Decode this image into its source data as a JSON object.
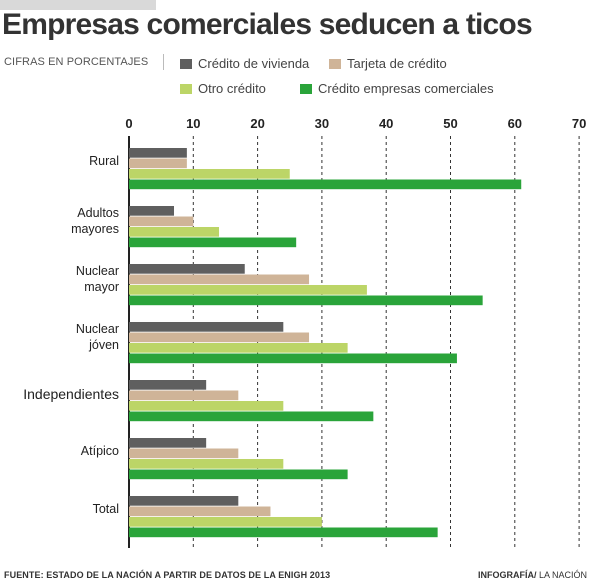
{
  "title": "Empresas comerciales seducen a ticos",
  "subtitle": "CIFRAS EN PORCENTAJES",
  "source": "FUENTE: ESTADO DE LA NACIÓN A PARTIR DE DATOS DE LA ENIGH 2013",
  "credit_strong": "INFOGRAFÍA/",
  "credit_rest": " LA NACIÓN",
  "legend": [
    {
      "label": "Crédito de vivienda",
      "color": "#5f5f5f"
    },
    {
      "label": "Tarjeta de crédito",
      "color": "#cfb498"
    },
    {
      "label": "Otro crédito",
      "color": "#bcd567"
    },
    {
      "label": "Crédito empresas comerciales",
      "color": "#2aa43a"
    }
  ],
  "chart_data": {
    "type": "bar",
    "orientation": "horizontal",
    "title": "Empresas comerciales seducen a ticos",
    "xlim": [
      0,
      70
    ],
    "xticks": [
      0,
      10,
      20,
      30,
      40,
      50,
      60,
      70
    ],
    "grid": true,
    "legend_position": "top",
    "categories": [
      [
        "Rural"
      ],
      [
        "Adultos",
        "mayores"
      ],
      [
        "Nuclear",
        "mayor"
      ],
      [
        "Nuclear",
        "jóven"
      ],
      [
        "Independientes"
      ],
      [
        "Atípico"
      ],
      [
        "Total"
      ]
    ],
    "series": [
      {
        "name": "Crédito de vivienda",
        "color": "#5f5f5f",
        "values": [
          9,
          7,
          18,
          24,
          12,
          12,
          17
        ]
      },
      {
        "name": "Tarjeta de crédito",
        "color": "#cfb498",
        "values": [
          9,
          10,
          28,
          28,
          17,
          17,
          22
        ]
      },
      {
        "name": "Otro crédito",
        "color": "#bcd567",
        "values": [
          25,
          14,
          37,
          34,
          24,
          24,
          30
        ]
      },
      {
        "name": "Crédito empresas comerciales",
        "color": "#2aa43a",
        "values": [
          61,
          26,
          55,
          51,
          38,
          34,
          48
        ]
      }
    ]
  }
}
